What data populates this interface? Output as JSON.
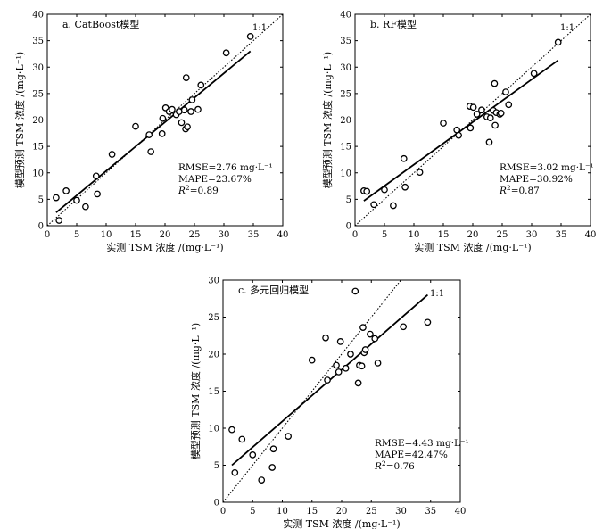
{
  "chart_data": [
    {
      "type": "scatter",
      "title": "a. CatBoost模型",
      "xlabel": "实测 TSM 浓度 /(mg·L⁻¹)",
      "ylabel": "模型预测 TSM 浓度 /(mg·L⁻¹)",
      "xlim": [
        0,
        40
      ],
      "ylim": [
        0,
        40
      ],
      "xticks": [
        0,
        5,
        10,
        15,
        20,
        25,
        30,
        35,
        40
      ],
      "yticks": [
        0,
        5,
        10,
        15,
        20,
        25,
        30,
        35,
        40
      ],
      "one_to_one_label": "1:1",
      "fit_line": {
        "x": [
          1.5,
          34.5
        ],
        "y": [
          2.5,
          33.0
        ]
      },
      "stats": [
        "RMSE=2.76 mg·L⁻¹",
        "MAPE=23.67%"
      ],
      "r2": {
        "prefix": "R",
        "sup": "2",
        "value": "=0.89"
      },
      "points": [
        [
          1.5,
          5.3
        ],
        [
          2.0,
          1.0
        ],
        [
          3.2,
          6.6
        ],
        [
          5.0,
          4.8
        ],
        [
          6.5,
          3.6
        ],
        [
          8.3,
          9.4
        ],
        [
          8.5,
          6.0
        ],
        [
          11.0,
          13.5
        ],
        [
          15.0,
          18.8
        ],
        [
          17.3,
          17.2
        ],
        [
          17.6,
          14.0
        ],
        [
          19.5,
          17.4
        ],
        [
          19.6,
          20.3
        ],
        [
          20.1,
          22.3
        ],
        [
          20.7,
          21.6
        ],
        [
          21.2,
          22.0
        ],
        [
          21.9,
          21.0
        ],
        [
          22.4,
          21.6
        ],
        [
          22.8,
          19.5
        ],
        [
          23.3,
          21.9
        ],
        [
          23.5,
          18.3
        ],
        [
          23.6,
          28.0
        ],
        [
          23.8,
          18.7
        ],
        [
          24.4,
          21.6
        ],
        [
          24.6,
          23.8
        ],
        [
          25.6,
          22.0
        ],
        [
          26.1,
          26.6
        ],
        [
          30.4,
          32.7
        ],
        [
          34.5,
          35.8
        ]
      ]
    },
    {
      "type": "scatter",
      "title": "b. RF模型",
      "xlabel": "实测 TSM 浓度 /(mg·L⁻¹)",
      "ylabel": "模型预测 TSM 浓度 /(mg·L⁻¹)",
      "xlim": [
        0,
        40
      ],
      "ylim": [
        0,
        40
      ],
      "xticks": [
        0,
        5,
        10,
        15,
        20,
        25,
        30,
        35,
        40
      ],
      "yticks": [
        0,
        5,
        10,
        15,
        20,
        25,
        30,
        35,
        40
      ],
      "one_to_one_label": "1:1",
      "fit_line": {
        "x": [
          1.5,
          34.5
        ],
        "y": [
          4.7,
          31.3
        ]
      },
      "stats": [
        "RMSE=3.02 mg·L⁻¹",
        "MAPE=30.92%"
      ],
      "r2": {
        "prefix": "R",
        "sup": "2",
        "value": "=0.87"
      },
      "points": [
        [
          1.5,
          6.6
        ],
        [
          2.0,
          6.5
        ],
        [
          3.2,
          4.0
        ],
        [
          5.0,
          6.8
        ],
        [
          6.5,
          3.8
        ],
        [
          8.3,
          12.7
        ],
        [
          8.5,
          7.3
        ],
        [
          11.0,
          10.1
        ],
        [
          15.0,
          19.4
        ],
        [
          17.3,
          18.1
        ],
        [
          17.6,
          17.1
        ],
        [
          19.5,
          22.6
        ],
        [
          19.6,
          18.5
        ],
        [
          20.1,
          22.4
        ],
        [
          20.7,
          21.1
        ],
        [
          21.5,
          21.9
        ],
        [
          22.4,
          20.6
        ],
        [
          22.8,
          15.8
        ],
        [
          23.0,
          20.4
        ],
        [
          23.5,
          21.8
        ],
        [
          23.7,
          26.9
        ],
        [
          23.8,
          19.0
        ],
        [
          24.0,
          21.4
        ],
        [
          24.6,
          21.1
        ],
        [
          24.8,
          21.3
        ],
        [
          25.6,
          25.3
        ],
        [
          26.1,
          22.9
        ],
        [
          30.4,
          28.8
        ],
        [
          34.5,
          34.7
        ]
      ]
    },
    {
      "type": "scatter",
      "title": "c. 多元回归模型",
      "xlabel": "实测 TSM 浓度 /(mg·L⁻¹)",
      "ylabel": "模型预测 TSM 浓度 /(mg·L⁻¹)",
      "xlim": [
        0,
        40
      ],
      "ylim": [
        0,
        30
      ],
      "xticks": [
        0,
        5,
        10,
        15,
        20,
        25,
        30,
        35,
        40
      ],
      "yticks": [
        0,
        5,
        10,
        15,
        20,
        25,
        30
      ],
      "one_to_one_label": "1:1",
      "fit_line": {
        "x": [
          1.5,
          34.5
        ],
        "y": [
          5.0,
          28.0
        ]
      },
      "stats": [
        "RMSE=4.43 mg·L⁻¹",
        "MAPE=42.47%"
      ],
      "r2": {
        "prefix": "R",
        "sup": "2",
        "value": "=0.76"
      },
      "points": [
        [
          1.5,
          9.8
        ],
        [
          2.0,
          4.0
        ],
        [
          3.2,
          8.5
        ],
        [
          5.0,
          6.4
        ],
        [
          6.5,
          3.0
        ],
        [
          8.3,
          4.7
        ],
        [
          8.5,
          7.2
        ],
        [
          11.0,
          8.9
        ],
        [
          15.0,
          19.2
        ],
        [
          17.3,
          22.2
        ],
        [
          17.6,
          16.5
        ],
        [
          19.1,
          18.5
        ],
        [
          19.5,
          17.6
        ],
        [
          19.8,
          21.7
        ],
        [
          20.7,
          18.1
        ],
        [
          21.5,
          20.0
        ],
        [
          22.3,
          28.5
        ],
        [
          22.8,
          16.1
        ],
        [
          23.0,
          18.5
        ],
        [
          23.4,
          18.4
        ],
        [
          23.6,
          23.6
        ],
        [
          23.8,
          20.2
        ],
        [
          24.0,
          20.6
        ],
        [
          24.8,
          22.7
        ],
        [
          25.6,
          22.1
        ],
        [
          26.1,
          18.8
        ],
        [
          30.4,
          23.7
        ],
        [
          34.5,
          24.3
        ]
      ]
    }
  ]
}
